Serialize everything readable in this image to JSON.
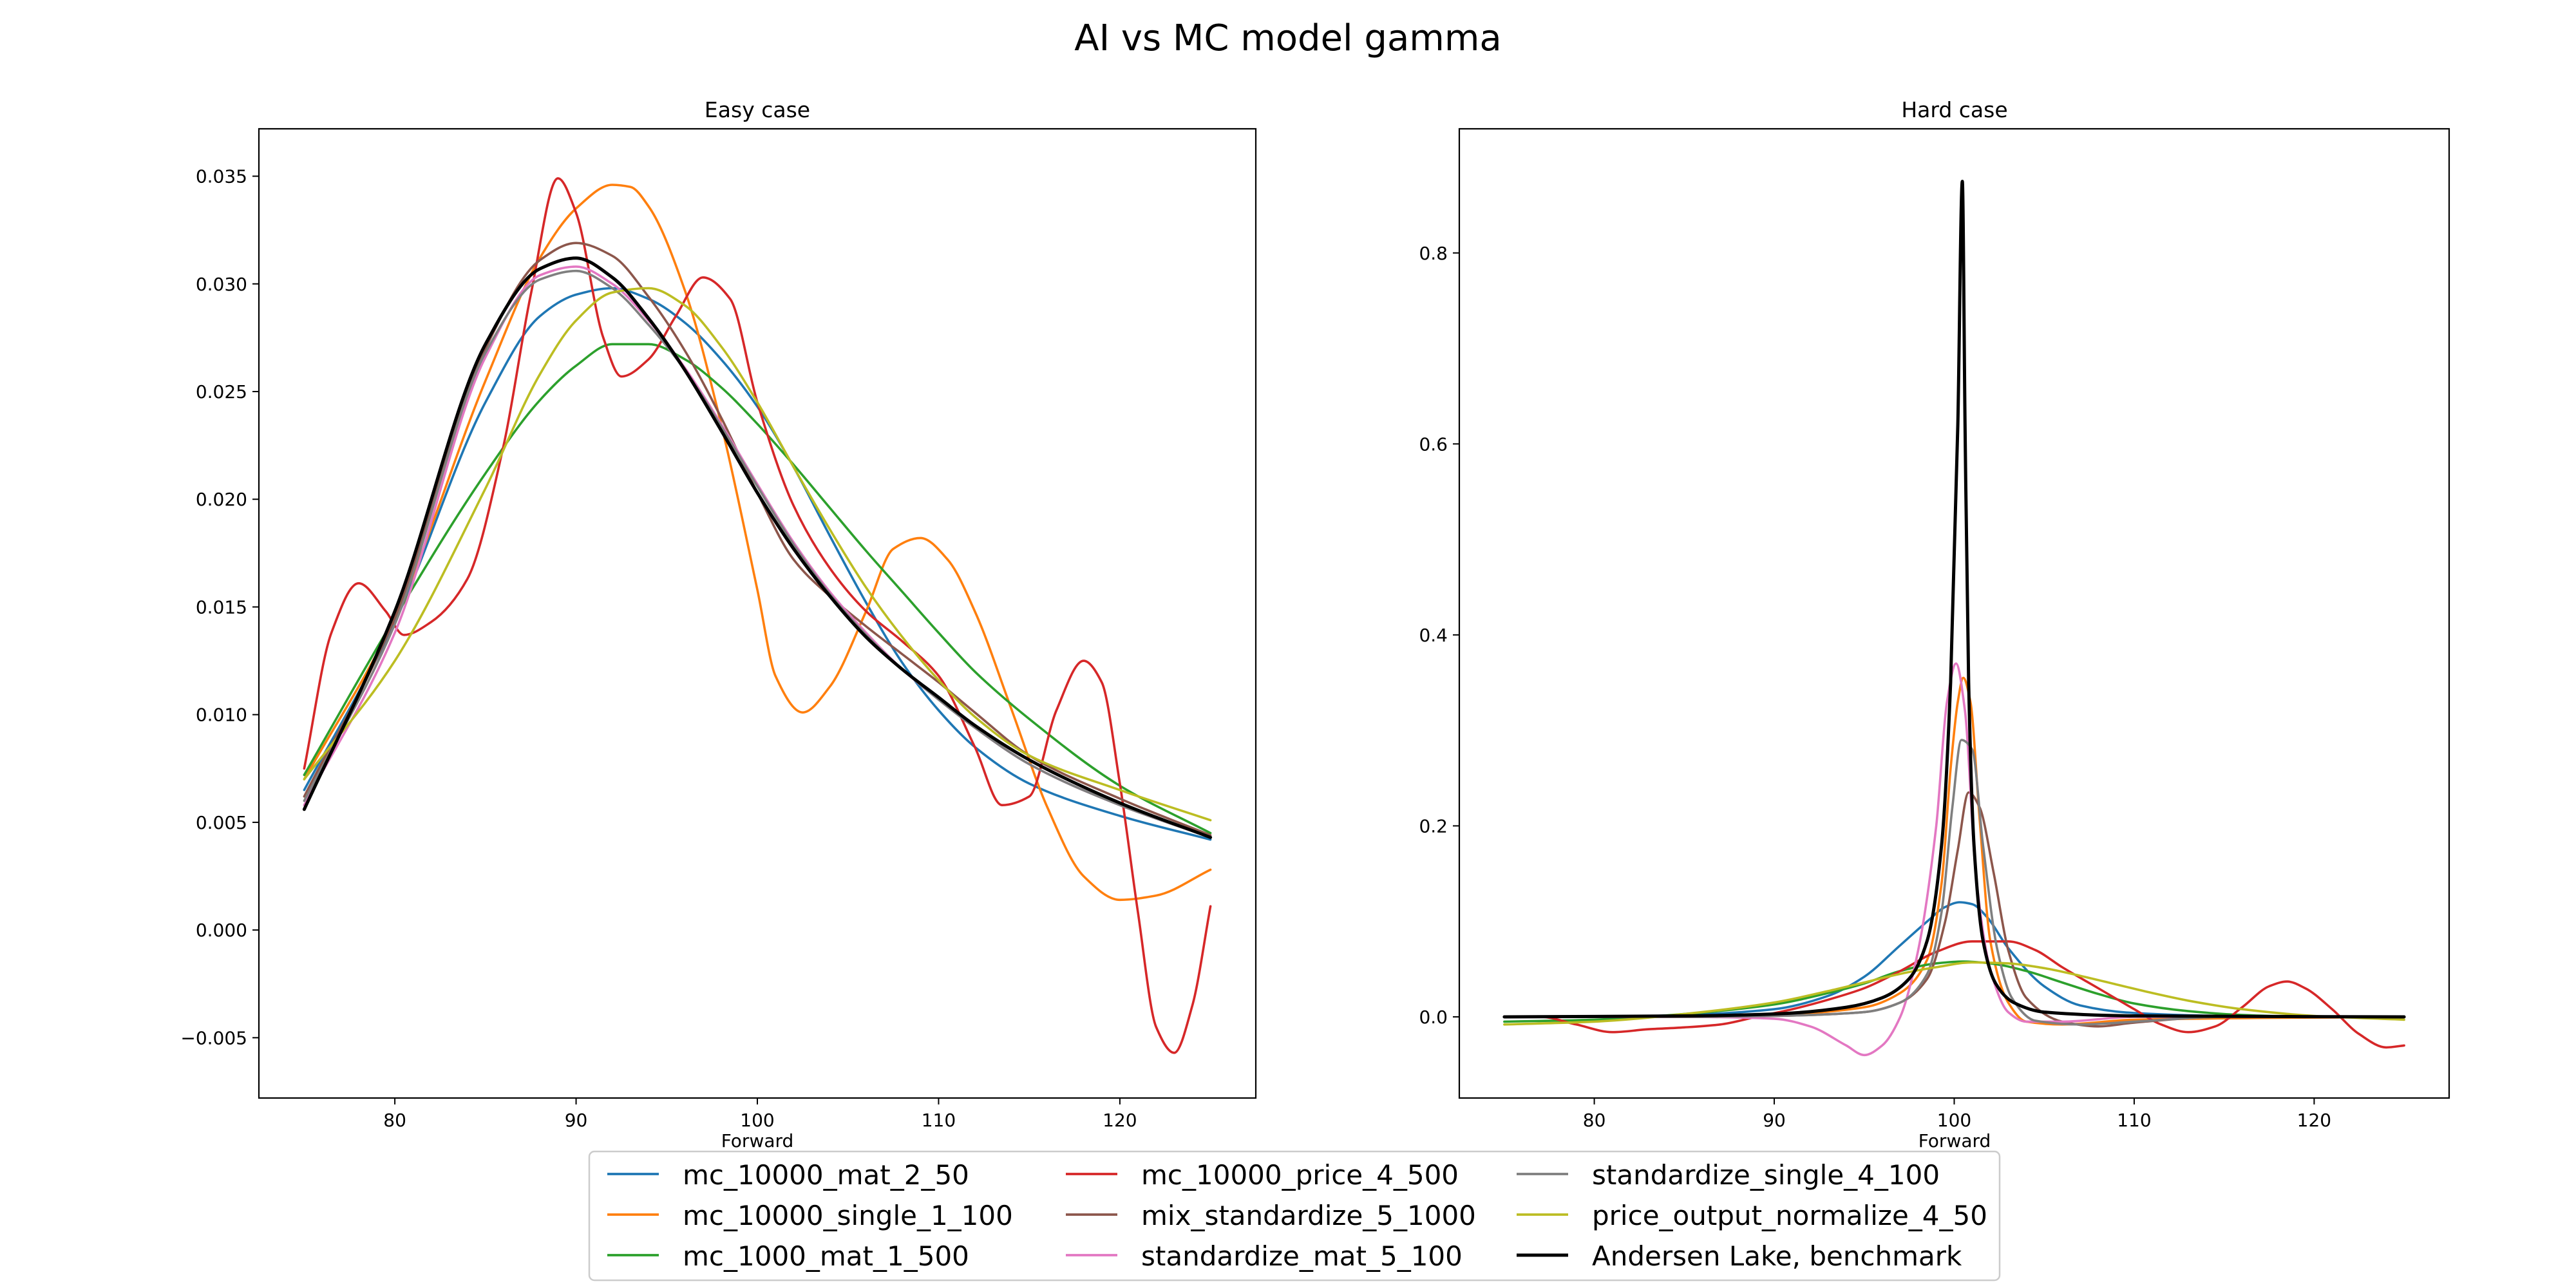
{
  "figure": {
    "title": "AI vs MC model gamma"
  },
  "series_meta": [
    {
      "name": "mc_10000_mat_2_50",
      "color": "#1f77b4"
    },
    {
      "name": "mc_10000_single_1_100",
      "color": "#ff7f0e"
    },
    {
      "name": "mc_1000_mat_1_500",
      "color": "#2ca02c"
    },
    {
      "name": "mc_10000_price_4_500",
      "color": "#d62728"
    },
    {
      "name": "mix_standardize_5_1000",
      "color": "#8c564b"
    },
    {
      "name": "standardize_mat_5_100",
      "color": "#e377c2"
    },
    {
      "name": "standardize_single_4_100",
      "color": "#7f7f7f"
    },
    {
      "name": "price_output_normalize_4_50",
      "color": "#bcbd22"
    },
    {
      "name": "Andersen Lake, benchmark",
      "color": "#000000"
    }
  ],
  "legend": {
    "placement": "bottom-center",
    "columns": 3
  },
  "chart_data": [
    {
      "type": "line",
      "title": "Easy case",
      "xlabel": "Forward",
      "ylabel": "",
      "xlim": [
        72.5,
        127.5
      ],
      "ylim": [
        -0.0078,
        0.0372
      ],
      "xticks": [
        80,
        90,
        100,
        110,
        120
      ],
      "yticks": [
        -0.005,
        0.0,
        0.005,
        0.01,
        0.015,
        0.02,
        0.025,
        0.03,
        0.035
      ],
      "ytick_labels": [
        "−0.005",
        "0.000",
        "0.005",
        "0.010",
        "0.015",
        "0.020",
        "0.025",
        "0.030",
        "0.035"
      ],
      "grid": false,
      "series": [
        {
          "name": "mc_10000_mat_2_50",
          "x": [
            75,
            80,
            85,
            88,
            90,
            92,
            94,
            96,
            98,
            100,
            102,
            104,
            106,
            108,
            110,
            112,
            115,
            120,
            125
          ],
          "y": [
            0.0065,
            0.0143,
            0.0245,
            0.0285,
            0.0295,
            0.0298,
            0.0293,
            0.0282,
            0.0265,
            0.0243,
            0.0215,
            0.0183,
            0.0152,
            0.0124,
            0.0102,
            0.0085,
            0.0068,
            0.0053,
            0.0042
          ]
        },
        {
          "name": "mc_10000_single_1_100",
          "x": [
            75,
            80,
            85,
            88,
            90,
            92,
            93,
            94,
            96,
            98,
            100,
            101,
            102.5,
            104,
            106,
            107.5,
            109,
            110.5,
            112,
            114,
            116,
            118,
            120,
            122,
            125
          ],
          "y": [
            0.007,
            0.0145,
            0.0255,
            0.0312,
            0.0335,
            0.0346,
            0.0345,
            0.0336,
            0.0297,
            0.0235,
            0.0158,
            0.0118,
            0.0101,
            0.0113,
            0.0148,
            0.0177,
            0.0182,
            0.0172,
            0.0148,
            0.0103,
            0.0057,
            0.0025,
            0.0014,
            0.0016,
            0.0028
          ]
        },
        {
          "name": "mc_1000_mat_1_500",
          "x": [
            75,
            80,
            85,
            88,
            90,
            92,
            94,
            96,
            98,
            100,
            102,
            104,
            106,
            108,
            110,
            112,
            115,
            120,
            125
          ],
          "y": [
            0.0072,
            0.0145,
            0.0212,
            0.0246,
            0.0262,
            0.0272,
            0.0272,
            0.0265,
            0.0252,
            0.0235,
            0.0216,
            0.0196,
            0.0176,
            0.0157,
            0.0138,
            0.012,
            0.0098,
            0.0067,
            0.0045
          ]
        },
        {
          "name": "mc_10000_price_4_500",
          "x": [
            75,
            76.5,
            78,
            79.5,
            80.5,
            82,
            84,
            86,
            87.5,
            89,
            90,
            91.5,
            92.5,
            94,
            95.5,
            97,
            98.5,
            100,
            102,
            104,
            106,
            108,
            110,
            112,
            113.5,
            115,
            116.5,
            118,
            119,
            120,
            121,
            122,
            123,
            124,
            125
          ],
          "y": [
            0.0075,
            0.0138,
            0.0161,
            0.0148,
            0.0137,
            0.0143,
            0.0163,
            0.0225,
            0.0295,
            0.0349,
            0.0333,
            0.0275,
            0.0257,
            0.0265,
            0.0285,
            0.0303,
            0.0293,
            0.0245,
            0.0197,
            0.0168,
            0.0148,
            0.0134,
            0.0118,
            0.0085,
            0.0058,
            0.0062,
            0.0102,
            0.0125,
            0.0115,
            0.0068,
            0.0008,
            -0.0045,
            -0.0057,
            -0.0035,
            0.0011
          ]
        },
        {
          "name": "mix_standardize_5_1000",
          "x": [
            75,
            80,
            85,
            88,
            90,
            92,
            94,
            96,
            98,
            100,
            102,
            104,
            106,
            108,
            110,
            112,
            115,
            120,
            125
          ],
          "y": [
            0.0062,
            0.0145,
            0.027,
            0.0311,
            0.0319,
            0.0313,
            0.0294,
            0.0269,
            0.0238,
            0.0203,
            0.0172,
            0.0155,
            0.0141,
            0.0128,
            0.0115,
            0.0101,
            0.0081,
            0.0061,
            0.0044
          ]
        },
        {
          "name": "standardize_mat_5_100",
          "x": [
            75,
            80,
            85,
            88,
            90,
            92,
            94,
            96,
            98,
            100,
            102,
            104,
            106,
            108,
            110,
            112,
            115,
            120,
            125
          ],
          "y": [
            0.0058,
            0.0138,
            0.0266,
            0.0304,
            0.0308,
            0.03,
            0.0283,
            0.0261,
            0.0235,
            0.0207,
            0.018,
            0.0157,
            0.0138,
            0.0121,
            0.0107,
            0.0094,
            0.0077,
            0.0058,
            0.0043
          ]
        },
        {
          "name": "standardize_single_4_100",
          "x": [
            75,
            80,
            85,
            88,
            90,
            92,
            94,
            96,
            98,
            100,
            102,
            104,
            106,
            108,
            110,
            112,
            115,
            120,
            125
          ],
          "y": [
            0.006,
            0.0142,
            0.0268,
            0.0302,
            0.0306,
            0.0298,
            0.0281,
            0.026,
            0.0234,
            0.0206,
            0.0179,
            0.0156,
            0.0137,
            0.0121,
            0.0107,
            0.0094,
            0.0077,
            0.0058,
            0.0043
          ]
        },
        {
          "name": "price_output_normalize_4_50",
          "x": [
            75,
            80,
            85,
            88,
            90,
            92,
            94,
            96,
            98,
            100,
            102,
            104,
            106,
            108,
            110,
            112,
            115,
            120,
            125
          ],
          "y": [
            0.007,
            0.0125,
            0.0205,
            0.0258,
            0.0283,
            0.0296,
            0.0298,
            0.029,
            0.0271,
            0.0245,
            0.0215,
            0.0186,
            0.0159,
            0.0136,
            0.0116,
            0.0099,
            0.0081,
            0.0065,
            0.0051
          ]
        },
        {
          "name": "Andersen Lake, benchmark",
          "x": [
            75,
            80,
            85,
            88,
            90,
            92,
            94,
            96,
            98,
            100,
            102,
            104,
            106,
            108,
            110,
            112,
            115,
            120,
            125
          ],
          "y": [
            0.0056,
            0.0148,
            0.0272,
            0.0307,
            0.0312,
            0.0303,
            0.0284,
            0.026,
            0.0232,
            0.0203,
            0.0177,
            0.0155,
            0.0136,
            0.0121,
            0.0108,
            0.0095,
            0.0079,
            0.0059,
            0.0043
          ]
        }
      ]
    },
    {
      "type": "line",
      "title": "Hard case",
      "xlabel": "Forward",
      "ylabel": "",
      "xlim": [
        72.5,
        127.5
      ],
      "ylim": [
        -0.085,
        0.93
      ],
      "xticks": [
        80,
        90,
        100,
        110,
        120
      ],
      "yticks": [
        0.0,
        0.2,
        0.4,
        0.6,
        0.8
      ],
      "ytick_labels": [
        "0.0",
        "0.2",
        "0.4",
        "0.6",
        "0.8"
      ],
      "grid": false,
      "series": [
        {
          "name": "mc_10000_mat_2_50",
          "x": [
            75,
            80,
            85,
            90,
            93,
            95,
            97,
            98.5,
            99.5,
            100.3,
            101,
            101.8,
            103,
            105,
            107,
            110,
            115,
            125
          ],
          "y": [
            0.0,
            0.0,
            0.002,
            0.008,
            0.022,
            0.042,
            0.075,
            0.1,
            0.115,
            0.12,
            0.118,
            0.105,
            0.072,
            0.032,
            0.012,
            0.004,
            0.001,
            0.0
          ]
        },
        {
          "name": "mc_10000_single_1_100",
          "x": [
            75,
            85,
            90,
            95,
            97,
            98.5,
            99.3,
            99.8,
            100.2,
            100.5,
            100.9,
            101.4,
            102,
            103,
            104,
            106,
            110,
            125
          ],
          "y": [
            0.0,
            0.0,
            0.002,
            0.01,
            0.025,
            0.06,
            0.14,
            0.26,
            0.33,
            0.355,
            0.33,
            0.21,
            0.08,
            0.015,
            -0.005,
            -0.008,
            -0.003,
            0.0
          ]
        },
        {
          "name": "mc_1000_mat_1_500",
          "x": [
            75,
            80,
            85,
            90,
            93,
            95,
            97,
            99,
            100.5,
            102,
            104,
            106,
            108,
            110,
            113,
            116,
            120,
            125
          ],
          "y": [
            -0.005,
            -0.003,
            0.003,
            0.013,
            0.025,
            0.035,
            0.048,
            0.056,
            0.058,
            0.056,
            0.048,
            0.036,
            0.024,
            0.014,
            0.006,
            0.002,
            0.0,
            0.0
          ]
        },
        {
          "name": "mc_10000_price_4_500",
          "x": [
            75,
            77,
            79,
            81,
            83,
            85,
            87,
            89,
            91,
            93,
            95,
            97,
            99,
            101,
            103,
            104.5,
            106,
            108,
            110,
            111.5,
            113,
            114.5,
            116,
            117.5,
            118.5,
            119.5,
            121,
            122.5,
            124,
            125
          ],
          "y": [
            0.0,
            0.0,
            -0.008,
            -0.016,
            -0.013,
            -0.011,
            -0.008,
            0.0,
            0.008,
            0.018,
            0.03,
            0.048,
            0.068,
            0.079,
            0.079,
            0.07,
            0.052,
            0.03,
            0.008,
            -0.008,
            -0.016,
            -0.01,
            0.01,
            0.032,
            0.037,
            0.03,
            0.008,
            -0.018,
            -0.032,
            -0.03
          ]
        },
        {
          "name": "mix_standardize_5_1000",
          "x": [
            75,
            85,
            90,
            95,
            97,
            98.5,
            99.5,
            100.2,
            100.8,
            101.4,
            102.2,
            103,
            104,
            106,
            108,
            110,
            115,
            125
          ],
          "y": [
            0.0,
            0.0,
            0.001,
            0.005,
            0.015,
            0.04,
            0.1,
            0.175,
            0.235,
            0.22,
            0.15,
            0.07,
            0.02,
            -0.005,
            -0.01,
            -0.006,
            0.0,
            0.0
          ]
        },
        {
          "name": "standardize_mat_5_100",
          "x": [
            75,
            85,
            90,
            92,
            94,
            95,
            96,
            97,
            98,
            99,
            99.6,
            100.1,
            100.6,
            101.2,
            102,
            103,
            104,
            106,
            110,
            125
          ],
          "y": [
            0.0,
            0.0,
            -0.002,
            -0.01,
            -0.03,
            -0.04,
            -0.03,
            0.0,
            0.07,
            0.2,
            0.33,
            0.37,
            0.32,
            0.15,
            0.05,
            0.005,
            -0.005,
            -0.005,
            0.0,
            0.0
          ]
        },
        {
          "name": "standardize_single_4_100",
          "x": [
            75,
            85,
            90,
            95,
            97,
            98.5,
            99.3,
            99.9,
            100.4,
            101,
            101.6,
            102.4,
            103.2,
            104.5,
            107,
            110,
            115,
            125
          ],
          "y": [
            0.0,
            0.0,
            0.001,
            0.005,
            0.015,
            0.045,
            0.11,
            0.22,
            0.29,
            0.28,
            0.18,
            0.07,
            0.02,
            -0.004,
            -0.008,
            -0.005,
            0.0,
            0.0
          ]
        },
        {
          "name": "price_output_normalize_4_50",
          "x": [
            75,
            80,
            85,
            90,
            93,
            95,
            97,
            99,
            101,
            103,
            105,
            107,
            109,
            111,
            113,
            116,
            120,
            125
          ],
          "y": [
            -0.008,
            -0.005,
            0.003,
            0.015,
            0.027,
            0.036,
            0.045,
            0.052,
            0.057,
            0.056,
            0.051,
            0.043,
            0.034,
            0.025,
            0.017,
            0.008,
            0.001,
            -0.003
          ]
        },
        {
          "name": "Andersen Lake, benchmark",
          "x": [
            75,
            85,
            90,
            94,
            96,
            97.5,
            98.5,
            99.3,
            99.8,
            100.2,
            100.45,
            100.6,
            100.8,
            101.1,
            101.6,
            102.3,
            103.3,
            105,
            110,
            125
          ],
          "y": [
            0.0,
            0.001,
            0.003,
            0.01,
            0.02,
            0.04,
            0.08,
            0.18,
            0.35,
            0.62,
            0.875,
            0.62,
            0.35,
            0.18,
            0.08,
            0.035,
            0.015,
            0.005,
            0.001,
            0.0
          ]
        }
      ]
    }
  ]
}
